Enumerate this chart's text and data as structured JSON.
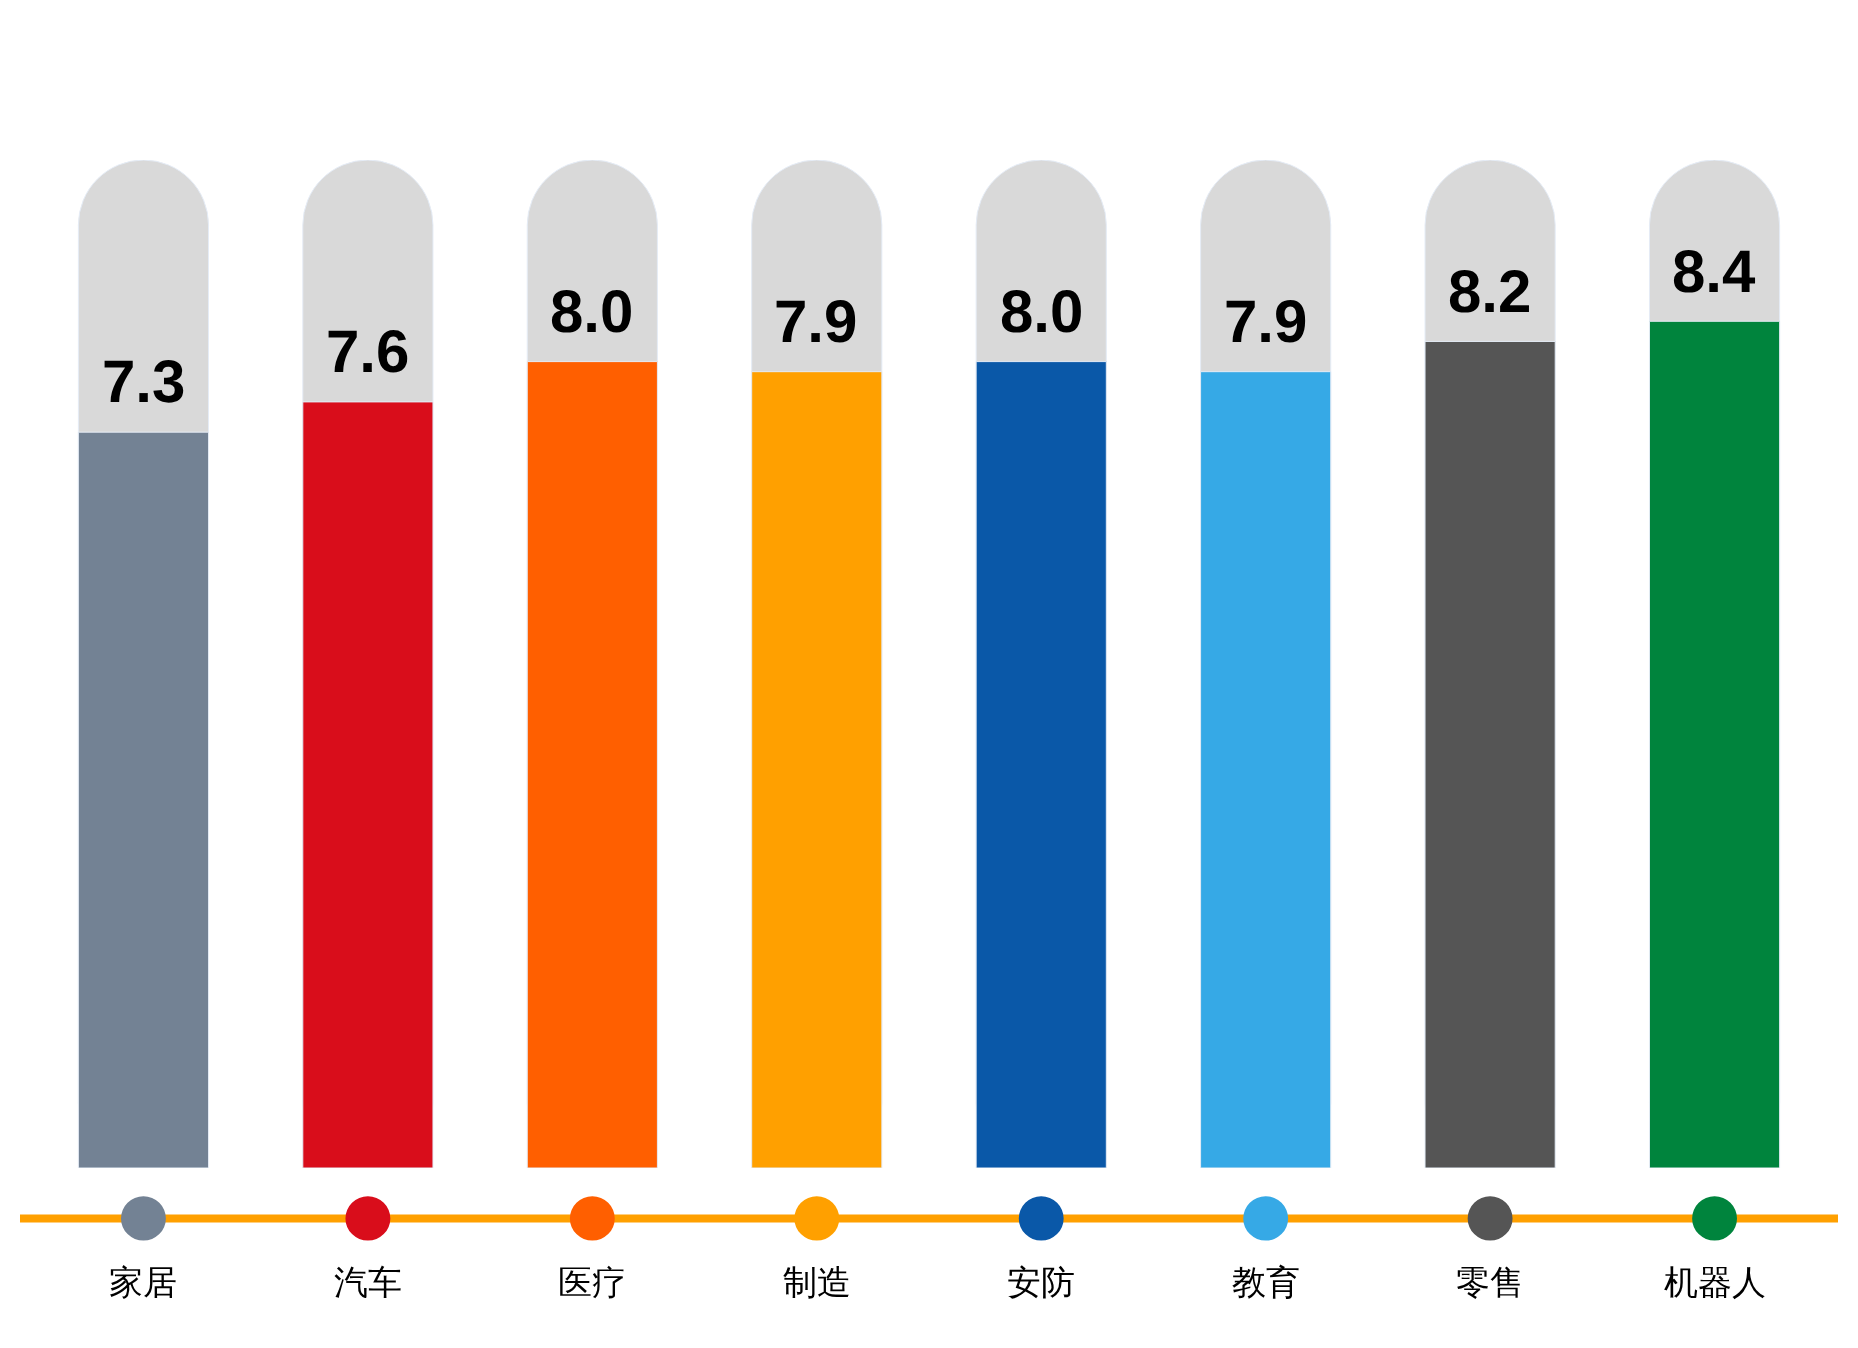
{
  "chart_data": {
    "type": "bar",
    "categories": [
      "家居",
      "汽车",
      "医疗",
      "制造",
      "安防",
      "教育",
      "零售",
      "机器人"
    ],
    "values": [
      7.3,
      7.6,
      8.0,
      7.9,
      8.0,
      7.9,
      8.2,
      8.4
    ],
    "value_labels": [
      "7.3",
      "7.6",
      "8.0",
      "7.9",
      "8.0",
      "7.9",
      "8.2",
      "8.4"
    ],
    "colors": [
      "#738294",
      "#d90d1b",
      "#ff5f00",
      "#ffa000",
      "#0a58a8",
      "#36a9e6",
      "#555555",
      "#00843d"
    ],
    "ylim": [
      0,
      10
    ],
    "legend": false
  }
}
